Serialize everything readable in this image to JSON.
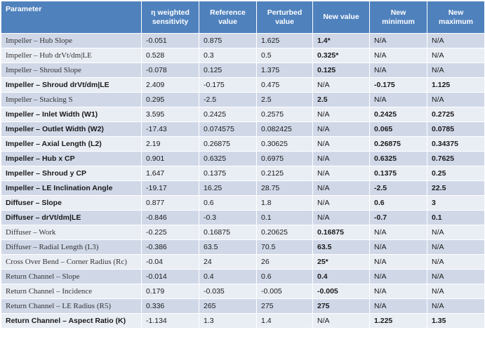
{
  "headers": [
    "Parameter",
    "η weighted sensitivity",
    "Reference value",
    "Perturbed value",
    "New value",
    "New minimum",
    "New maximum"
  ],
  "rows": [
    {
      "cells": [
        "Impeller – Hub Slope",
        "-0.051",
        "0.875",
        "1.625",
        "1.4*",
        "N/A",
        "N/A"
      ],
      "bold": [
        false,
        false,
        false,
        false,
        true,
        false,
        false
      ]
    },
    {
      "cells": [
        "Impeller – Hub drVt/dm|LE",
        "0.528",
        "0.3",
        "0.5",
        "0.325*",
        "N/A",
        "N/A"
      ],
      "bold": [
        false,
        false,
        false,
        false,
        true,
        false,
        false
      ]
    },
    {
      "cells": [
        "Impeller – Shroud Slope",
        "-0.078",
        "0.125",
        "1.375",
        "0.125",
        "N/A",
        "N/A"
      ],
      "bold": [
        false,
        false,
        false,
        false,
        true,
        false,
        false
      ]
    },
    {
      "cells": [
        "Impeller – Shroud drVt/dm|LE",
        "2.409",
        "-0.175",
        "0.475",
        "N/A",
        "-0.175",
        "1.125"
      ],
      "bold": [
        true,
        false,
        false,
        false,
        false,
        true,
        true
      ]
    },
    {
      "cells": [
        "Impeller – Stacking S",
        "0.295",
        "-2.5",
        "2.5",
        "2.5",
        "N/A",
        "N/A"
      ],
      "bold": [
        false,
        false,
        false,
        false,
        true,
        false,
        false
      ]
    },
    {
      "cells": [
        "Impeller – Inlet Width (W1)",
        "3.595",
        "0.2425",
        "0.2575",
        "N/A",
        "0.2425",
        "0.2725"
      ],
      "bold": [
        true,
        false,
        false,
        false,
        false,
        true,
        true
      ]
    },
    {
      "cells": [
        "Impeller – Outlet Width (W2)",
        "-17.43",
        "0.074575",
        "0.082425",
        "N/A",
        "0.065",
        "0.0785"
      ],
      "bold": [
        true,
        false,
        false,
        false,
        false,
        true,
        true
      ]
    },
    {
      "cells": [
        "Impeller – Axial Length (L2)",
        "2.19",
        "0.26875",
        "0.30625",
        "N/A",
        "0.26875",
        "0.34375"
      ],
      "bold": [
        true,
        false,
        false,
        false,
        false,
        true,
        true
      ]
    },
    {
      "cells": [
        "Impeller – Hub x CP",
        "0.901",
        "0.6325",
        "0.6975",
        "N/A",
        "0.6325",
        "0.7625"
      ],
      "bold": [
        true,
        false,
        false,
        false,
        false,
        true,
        true
      ]
    },
    {
      "cells": [
        "Impeller – Shroud y CP",
        "1.647",
        "0.1375",
        "0.2125",
        "N/A",
        "0.1375",
        "0.25"
      ],
      "bold": [
        true,
        false,
        false,
        false,
        false,
        true,
        true
      ]
    },
    {
      "cells": [
        "Impeller – LE Inclination Angle",
        "-19.17",
        "16.25",
        "28.75",
        "N/A",
        "-2.5",
        "22.5"
      ],
      "bold": [
        true,
        false,
        false,
        false,
        false,
        true,
        true
      ]
    },
    {
      "cells": [
        "Diffuser – Slope",
        "0.877",
        "0.6",
        "1.8",
        "N/A",
        "0.6",
        "3"
      ],
      "bold": [
        true,
        false,
        false,
        false,
        false,
        true,
        true
      ]
    },
    {
      "cells": [
        "Diffuser – drVt/dm|LE",
        "-0.846",
        "-0.3",
        "0.1",
        "N/A",
        "-0.7",
        "0.1"
      ],
      "bold": [
        true,
        false,
        false,
        false,
        false,
        true,
        true
      ]
    },
    {
      "cells": [
        "Diffuser – Work",
        "-0.225",
        "0.16875",
        "0.20625",
        "0.16875",
        "N/A",
        "N/A"
      ],
      "bold": [
        false,
        false,
        false,
        false,
        true,
        false,
        false
      ]
    },
    {
      "cells": [
        "Diffuser – Radial Length (L3)",
        "-0.386",
        "63.5",
        "70.5",
        "63.5",
        "N/A",
        "N/A"
      ],
      "bold": [
        false,
        false,
        false,
        false,
        true,
        false,
        false
      ]
    },
    {
      "cells": [
        "Cross Over Bend – Corner Radius (Rc)",
        "-0.04",
        "24",
        "26",
        "25*",
        "N/A",
        "N/A"
      ],
      "bold": [
        false,
        false,
        false,
        false,
        true,
        false,
        false
      ]
    },
    {
      "cells": [
        "Return Channel – Slope",
        "-0.014",
        "0.4",
        "0.6",
        "0.4",
        "N/A",
        "N/A"
      ],
      "bold": [
        false,
        false,
        false,
        false,
        true,
        false,
        false
      ]
    },
    {
      "cells": [
        "Return Channel – Incidence",
        "0.179",
        "-0.035",
        "-0.005",
        "-0.005",
        "N/A",
        "N/A"
      ],
      "bold": [
        false,
        false,
        false,
        false,
        true,
        false,
        false
      ]
    },
    {
      "cells": [
        "Return Channel – LE Radius (R5)",
        "0.336",
        "265",
        "275",
        "275",
        "N/A",
        "N/A"
      ],
      "bold": [
        false,
        false,
        false,
        false,
        true,
        false,
        false
      ]
    },
    {
      "cells": [
        "Return Channel – Aspect Ratio (K)",
        "-1.134",
        "1.3",
        "1.4",
        "N/A",
        "1.225",
        "1.35"
      ],
      "bold": [
        true,
        false,
        false,
        false,
        false,
        true,
        true
      ]
    }
  ]
}
